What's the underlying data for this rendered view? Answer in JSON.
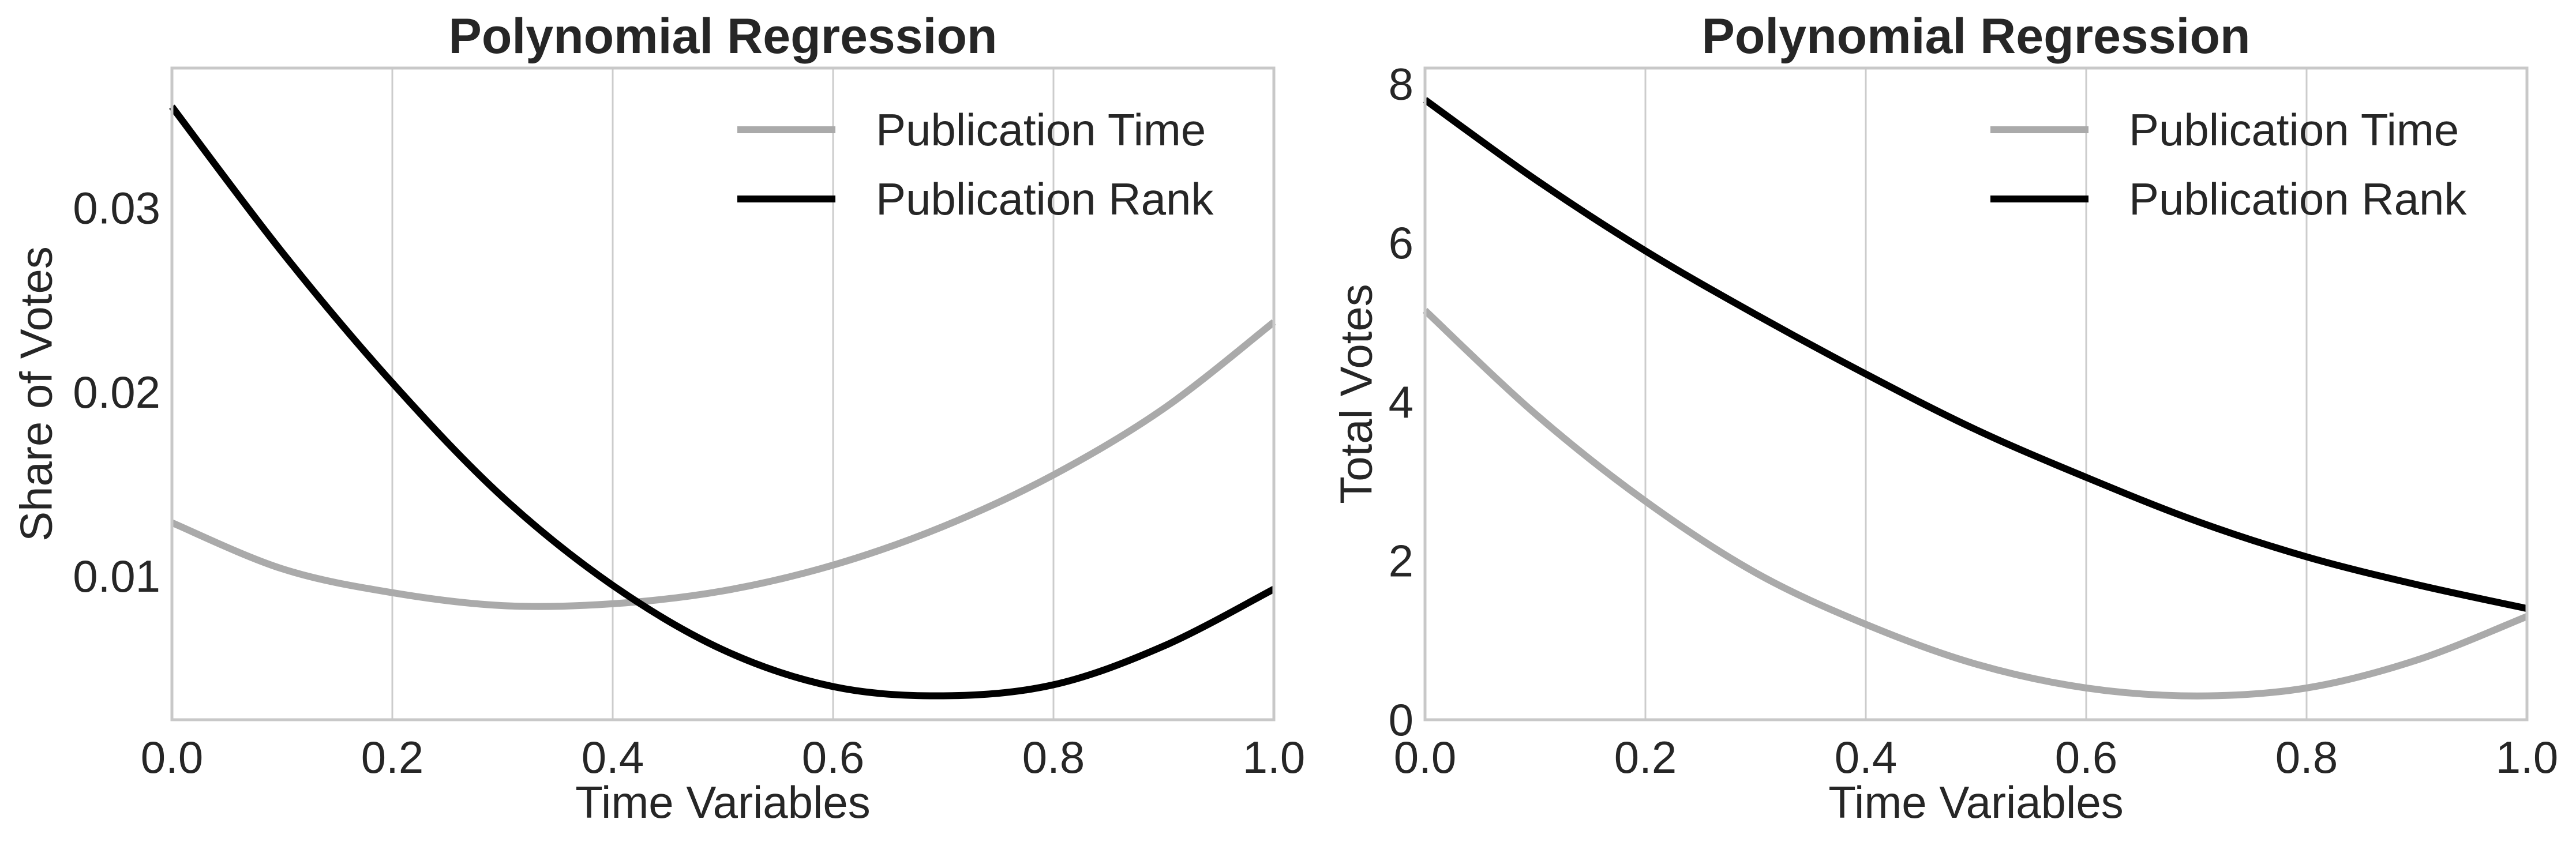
{
  "chart_data": [
    {
      "type": "line",
      "title": "Polynomial Regression",
      "xlabel": "Time Variables",
      "ylabel": "Share of Votes",
      "xlim": [
        0.0,
        1.0
      ],
      "ylim": [
        0.0022,
        0.0376
      ],
      "xticks": [
        "0.0",
        "0.2",
        "0.4",
        "0.6",
        "0.8",
        "1.0"
      ],
      "xtick_values": [
        0.0,
        0.2,
        0.4,
        0.6,
        0.8,
        1.0
      ],
      "yticks": [
        "0.01",
        "0.02",
        "0.03"
      ],
      "ytick_values": [
        0.01,
        0.02,
        0.03
      ],
      "grid": "vertical",
      "legend_position": "top-right",
      "x": [
        0.0,
        0.1,
        0.2,
        0.3,
        0.4,
        0.5,
        0.6,
        0.7,
        0.8,
        0.9,
        1.0
      ],
      "series": [
        {
          "name": "Publication Time",
          "color": "#aaaaaa",
          "values": [
            0.0129,
            0.0104,
            0.0091,
            0.0084,
            0.0085,
            0.0092,
            0.0106,
            0.0127,
            0.0155,
            0.0191,
            0.0238
          ]
        },
        {
          "name": "Publication Rank",
          "color": "#000000",
          "values": [
            0.0355,
            0.0276,
            0.0205,
            0.0143,
            0.0095,
            0.006,
            0.004,
            0.0035,
            0.0041,
            0.0062,
            0.0093
          ]
        }
      ]
    },
    {
      "type": "line",
      "title": "Polynomial Regression",
      "xlabel": "Time Variables",
      "ylabel": "Total Votes",
      "xlim": [
        0.0,
        1.0
      ],
      "ylim": [
        0.0,
        8.2
      ],
      "xticks": [
        "0.0",
        "0.2",
        "0.4",
        "0.6",
        "0.8",
        "1.0"
      ],
      "xtick_values": [
        0.0,
        0.2,
        0.4,
        0.6,
        0.8,
        1.0
      ],
      "yticks": [
        "0",
        "2",
        "4",
        "6",
        "8"
      ],
      "ytick_values": [
        0,
        2,
        4,
        6,
        8
      ],
      "grid": "vertical",
      "legend_position": "top-right",
      "x": [
        0.0,
        0.1,
        0.2,
        0.3,
        0.4,
        0.5,
        0.6,
        0.7,
        0.8,
        0.9,
        1.0
      ],
      "series": [
        {
          "name": "Publication Time",
          "color": "#aaaaaa",
          "values": [
            5.15,
            3.85,
            2.75,
            1.85,
            1.2,
            0.7,
            0.4,
            0.3,
            0.4,
            0.75,
            1.3
          ]
        },
        {
          "name": "Publication Rank",
          "color": "#000000",
          "values": [
            7.8,
            6.8,
            5.9,
            5.1,
            4.35,
            3.65,
            3.05,
            2.5,
            2.05,
            1.7,
            1.4
          ]
        }
      ]
    }
  ]
}
